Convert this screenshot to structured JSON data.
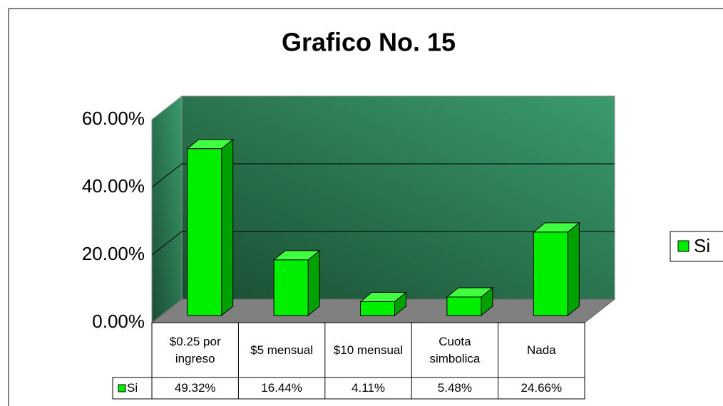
{
  "chart_data": {
    "type": "bar",
    "title": "Grafico No. 15",
    "categories": [
      "$0.25 por ingreso",
      "$5 mensual",
      "$10 mensual",
      "Cuota simbolica",
      "Nada"
    ],
    "series": [
      {
        "name": "Si",
        "color": "#00ee00",
        "values": [
          49.32,
          16.44,
          4.11,
          5.48,
          24.66
        ],
        "value_labels": [
          "49.32%",
          "16.44%",
          "4.11%",
          "5.48%",
          "24.66%"
        ]
      }
    ],
    "ylim": [
      0,
      60
    ],
    "yticks": [
      {
        "value": 0,
        "label": "0.00%"
      },
      {
        "value": 20,
        "label": "20.00%"
      },
      {
        "value": 40,
        "label": "40.00%"
      },
      {
        "value": 60,
        "label": "60.00%"
      }
    ],
    "grid": true,
    "legend": "right"
  }
}
